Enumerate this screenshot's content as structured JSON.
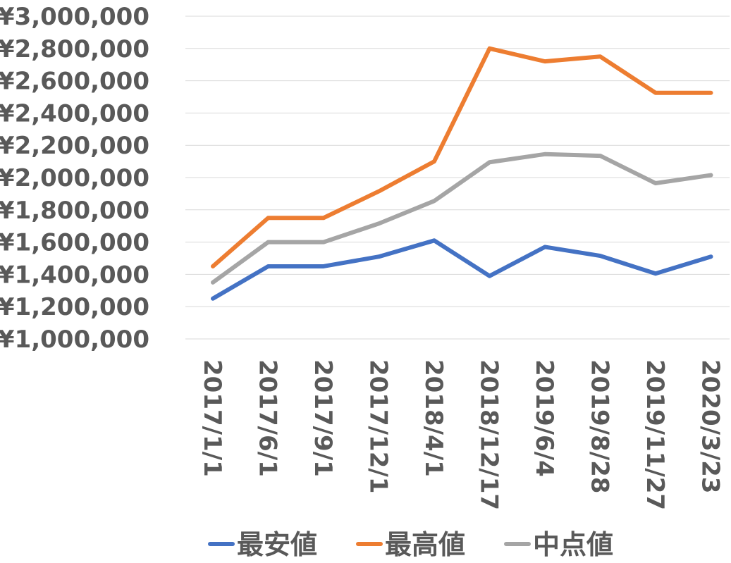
{
  "chart_data": {
    "type": "line",
    "categories": [
      "2017/1/1",
      "2017/6/1",
      "2017/9/1",
      "2017/12/1",
      "2018/4/1",
      "2018/12/17",
      "2019/6/4",
      "2019/8/28",
      "2019/11/27",
      "2020/3/23"
    ],
    "ylim": [
      1000000,
      3000000
    ],
    "yticks": [
      1000000,
      1200000,
      1400000,
      1600000,
      1800000,
      2000000,
      2200000,
      2400000,
      2600000,
      2800000,
      3000000
    ],
    "ytick_labels": [
      "¥1,000,000",
      "¥1,200,000",
      "¥1,400,000",
      "¥1,600,000",
      "¥1,800,000",
      "¥2,000,000",
      "¥2,200,000",
      "¥2,400,000",
      "¥2,600,000",
      "¥2,800,000",
      "¥3,000,000"
    ],
    "grid": true,
    "legend_position": "bottom",
    "series": [
      {
        "name": "最安値",
        "color": "#4472c4",
        "values": [
          1250000,
          1450000,
          1450000,
          1510000,
          1610000,
          1390000,
          1570000,
          1515000,
          1405000,
          1510000
        ]
      },
      {
        "name": "最高値",
        "color": "#ed7d31",
        "values": [
          1450000,
          1750000,
          1750000,
          1915000,
          2100000,
          2800000,
          2720000,
          2750000,
          2525000,
          2525000
        ]
      },
      {
        "name": "中点値",
        "color": "#a5a5a5",
        "values": [
          1350000,
          1600000,
          1600000,
          1715000,
          1855000,
          2095000,
          2145000,
          2135000,
          1965000,
          2015000
        ]
      }
    ]
  }
}
